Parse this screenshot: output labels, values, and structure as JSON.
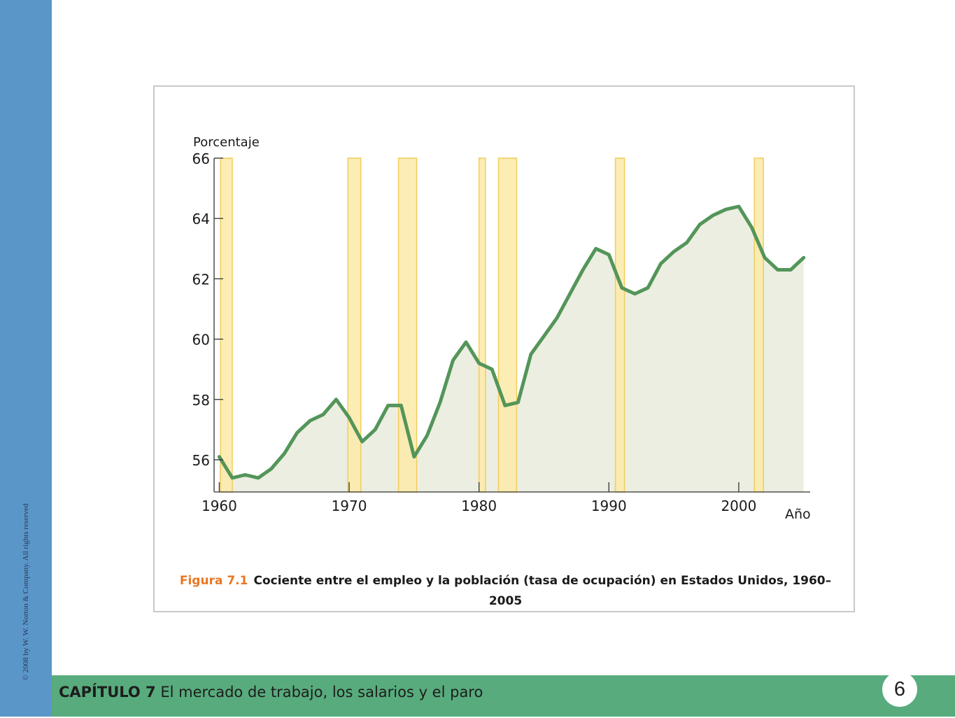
{
  "side_text": "© 2008 by W. W. Norton & Company. All rights reserved",
  "footer": {
    "chapter_label": "CAPÍTULO 7",
    "chapter_title": "El mercado de trabajo, los salarios y el paro",
    "chapter_number": "6"
  },
  "colors": {
    "sidebar": "#5b96c9",
    "footer_bar": "#58ab7d",
    "line": "#54955a",
    "area_fill": "#eceee1",
    "recession_fill": "#fbeaa8",
    "recession_stroke": "#f2cd5a",
    "figure_label": "#e87722"
  },
  "caption": {
    "label": "Figura 7.1",
    "text": "Cociente entre el empleo y la población (tasa de ocupación) en Estados Unidos, 1960–2005"
  },
  "chart_data": {
    "type": "line",
    "ylabel": "Porcentaje",
    "xlabel": "Año",
    "ylim": [
      55,
      66
    ],
    "xlim": [
      1959.6,
      2005.5
    ],
    "yticks": [
      56,
      58,
      60,
      62,
      64,
      66
    ],
    "xticks": [
      1960,
      1970,
      1980,
      1990,
      2000
    ],
    "grid": false,
    "area_under_line": true,
    "x": [
      1960,
      1961,
      1962,
      1963,
      1964,
      1965,
      1966,
      1967,
      1968,
      1969,
      1970,
      1971,
      1972,
      1973,
      1974,
      1975,
      1976,
      1977,
      1978,
      1979,
      1980,
      1981,
      1982,
      1983,
      1984,
      1985,
      1986,
      1987,
      1988,
      1989,
      1990,
      1991,
      1992,
      1993,
      1994,
      1995,
      1996,
      1997,
      1998,
      1999,
      2000,
      2001,
      2002,
      2003,
      2004,
      2005
    ],
    "series": [
      {
        "values": [
          56.1,
          55.4,
          55.5,
          55.4,
          55.7,
          56.2,
          56.9,
          57.3,
          57.5,
          58.0,
          57.4,
          56.6,
          57.0,
          57.8,
          57.8,
          56.1,
          56.8,
          57.9,
          59.3,
          59.9,
          59.2,
          59.0,
          57.8,
          57.9,
          59.5,
          60.1,
          60.7,
          61.5,
          62.3,
          63.0,
          62.8,
          61.7,
          61.5,
          61.7,
          62.5,
          62.9,
          63.2,
          63.8,
          64.1,
          64.3,
          64.4,
          63.7,
          62.7,
          62.3,
          62.3,
          62.7
        ]
      }
    ],
    "shaded_periods": [
      [
        1960.1,
        1961.0
      ],
      [
        1969.9,
        1970.9
      ],
      [
        1973.8,
        1975.2
      ],
      [
        1980.0,
        1980.5
      ],
      [
        1981.5,
        1982.9
      ],
      [
        1990.5,
        1991.2
      ],
      [
        2001.2,
        2001.9
      ]
    ]
  }
}
